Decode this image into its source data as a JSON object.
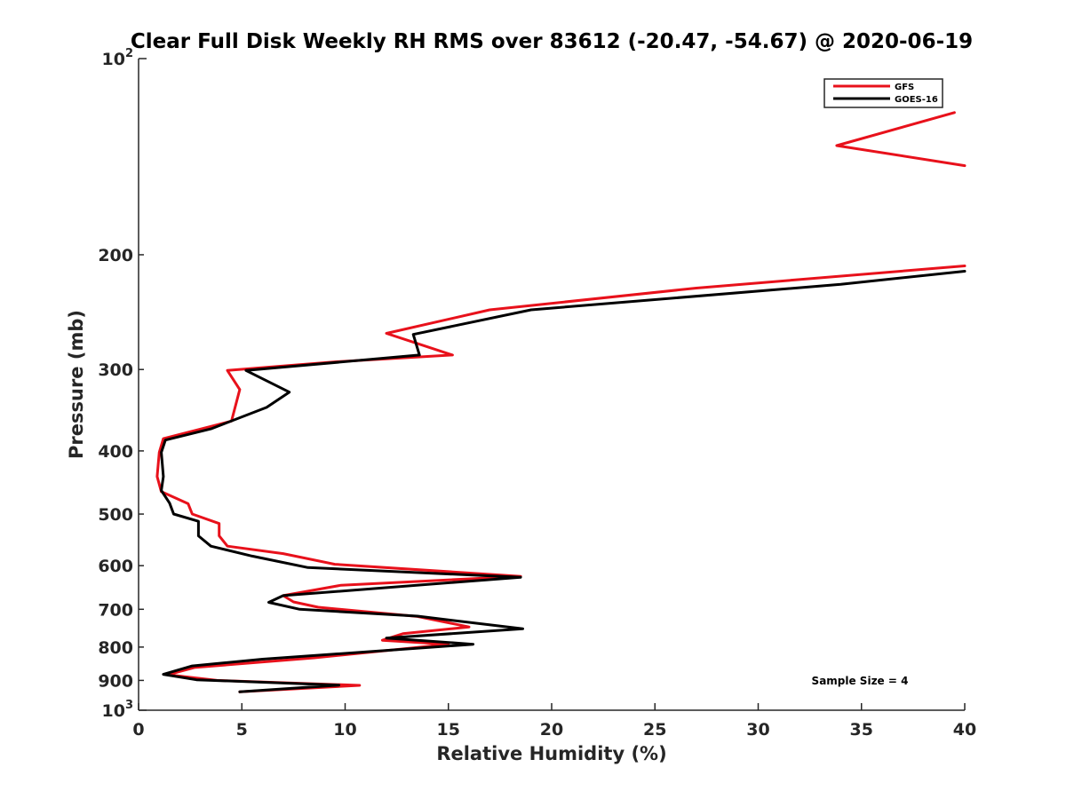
{
  "chart_data": {
    "type": "line",
    "title": "Clear Full Disk Weekly RH RMS over 83612 (-20.47, -54.67) @ 2020-06-19",
    "xlabel": "Relative Humidity (%)",
    "ylabel": "Pressure (mb)",
    "xlim": [
      0,
      40
    ],
    "ylim": [
      100,
      1000
    ],
    "y_scale": "log",
    "y_reversed": true,
    "grid": false,
    "legend_position": "top-right",
    "x_ticks": [
      0,
      5,
      10,
      15,
      20,
      25,
      30,
      35,
      40
    ],
    "x_tick_labels": [
      "0",
      "5",
      "10",
      "15",
      "20",
      "25",
      "30",
      "35",
      "40"
    ],
    "y_ticks": [
      100,
      200,
      300,
      400,
      500,
      600,
      700,
      800,
      900,
      1000
    ],
    "y_tick_labels": [
      {
        "base": "10",
        "exp": "2"
      },
      {
        "base": "200"
      },
      {
        "base": "300"
      },
      {
        "base": "400"
      },
      {
        "base": "500"
      },
      {
        "base": "600"
      },
      {
        "base": "700"
      },
      {
        "base": "800"
      },
      {
        "base": "900"
      },
      {
        "base": "10",
        "exp": "3"
      }
    ],
    "annotation": "Sample Size = 4",
    "series": [
      {
        "name": "GFS",
        "color": "#e8111b",
        "segments": [
          [
            {
              "x": 39.5,
              "y": 121
            },
            {
              "x": 33.8,
              "y": 136
            },
            {
              "x": 40,
              "y": 146
            }
          ],
          [
            {
              "x": 40,
              "y": 208
            },
            {
              "x": 27,
              "y": 225
            },
            {
              "x": 17,
              "y": 243
            },
            {
              "x": 12.0,
              "y": 264
            },
            {
              "x": 15.2,
              "y": 285
            },
            {
              "x": 9.5,
              "y": 292
            },
            {
              "x": 4.3,
              "y": 301
            },
            {
              "x": 4.9,
              "y": 322
            },
            {
              "x": 4.5,
              "y": 360
            },
            {
              "x": 1.2,
              "y": 383
            },
            {
              "x": 1.0,
              "y": 402
            },
            {
              "x": 0.9,
              "y": 438
            },
            {
              "x": 1.1,
              "y": 462
            },
            {
              "x": 2.4,
              "y": 482
            },
            {
              "x": 2.6,
              "y": 500
            },
            {
              "x": 3.9,
              "y": 517
            },
            {
              "x": 3.9,
              "y": 540
            },
            {
              "x": 4.3,
              "y": 560
            },
            {
              "x": 7.0,
              "y": 575
            },
            {
              "x": 9.5,
              "y": 597
            },
            {
              "x": 18.5,
              "y": 623
            },
            {
              "x": 9.8,
              "y": 643
            },
            {
              "x": 7.0,
              "y": 667
            },
            {
              "x": 7.5,
              "y": 682
            },
            {
              "x": 8.7,
              "y": 695
            },
            {
              "x": 13.5,
              "y": 718
            },
            {
              "x": 16.0,
              "y": 745
            },
            {
              "x": 12.8,
              "y": 763
            },
            {
              "x": 11.8,
              "y": 781
            },
            {
              "x": 15.0,
              "y": 792
            },
            {
              "x": 8.5,
              "y": 831
            },
            {
              "x": 2.7,
              "y": 860
            },
            {
              "x": 1.4,
              "y": 882
            },
            {
              "x": 3.8,
              "y": 900
            },
            {
              "x": 10.7,
              "y": 916
            },
            {
              "x": 4.9,
              "y": 937
            }
          ]
        ]
      },
      {
        "name": "GOES-16",
        "color": "#000000",
        "segments": [
          [
            {
              "x": 40,
              "y": 212
            },
            {
              "x": 34,
              "y": 222
            },
            {
              "x": 19,
              "y": 243
            },
            {
              "x": 13.3,
              "y": 265
            },
            {
              "x": 13.6,
              "y": 285
            },
            {
              "x": 5.2,
              "y": 301
            },
            {
              "x": 7.3,
              "y": 325
            },
            {
              "x": 6.2,
              "y": 343
            },
            {
              "x": 3.5,
              "y": 370
            },
            {
              "x": 1.3,
              "y": 385
            },
            {
              "x": 1.1,
              "y": 402
            },
            {
              "x": 1.2,
              "y": 438
            },
            {
              "x": 1.1,
              "y": 460
            },
            {
              "x": 1.5,
              "y": 481
            },
            {
              "x": 1.7,
              "y": 500
            },
            {
              "x": 2.9,
              "y": 513
            },
            {
              "x": 2.9,
              "y": 540
            },
            {
              "x": 3.5,
              "y": 560
            },
            {
              "x": 5.5,
              "y": 580
            },
            {
              "x": 8.2,
              "y": 604
            },
            {
              "x": 18.5,
              "y": 625
            },
            {
              "x": 7.0,
              "y": 667
            },
            {
              "x": 6.3,
              "y": 683
            },
            {
              "x": 7.8,
              "y": 700
            },
            {
              "x": 13.5,
              "y": 717
            },
            {
              "x": 18.6,
              "y": 750
            },
            {
              "x": 12.0,
              "y": 775
            },
            {
              "x": 16.2,
              "y": 792
            },
            {
              "x": 6.0,
              "y": 835
            },
            {
              "x": 2.6,
              "y": 855
            },
            {
              "x": 1.2,
              "y": 881
            },
            {
              "x": 2.8,
              "y": 898
            },
            {
              "x": 9.7,
              "y": 915
            },
            {
              "x": 4.9,
              "y": 937
            }
          ]
        ]
      }
    ]
  }
}
